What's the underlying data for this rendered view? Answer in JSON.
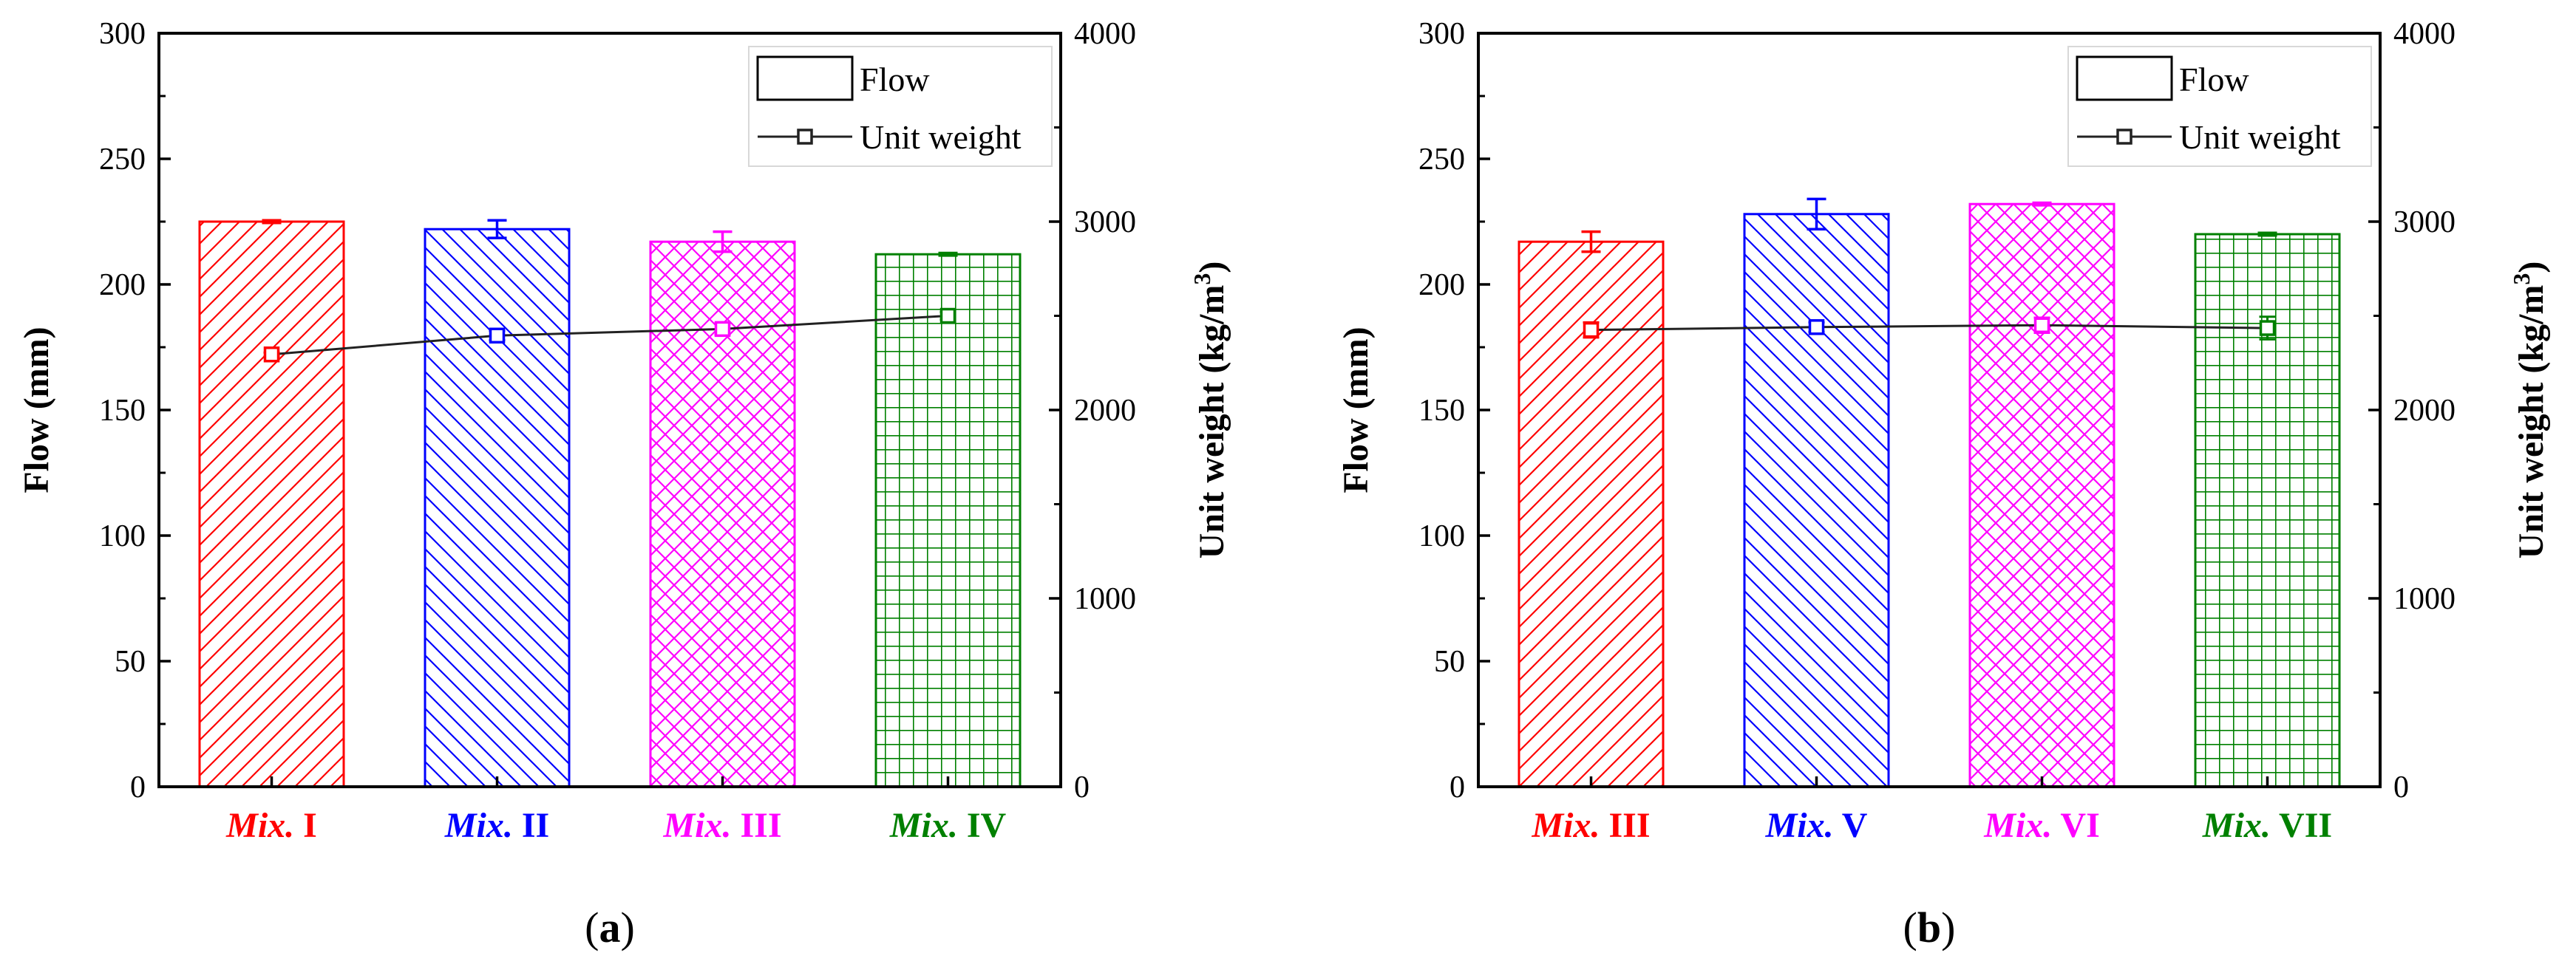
{
  "chart_data": [
    {
      "type": "bar",
      "panel_label": "(a)",
      "panel_label_parts": [
        "(",
        "a",
        ")"
      ],
      "categories": [
        {
          "prefix": "Mix.",
          "numeral": "I",
          "color": "#ff0000"
        },
        {
          "prefix": "Mix.",
          "numeral": "II",
          "color": "#0000ff"
        },
        {
          "prefix": "Mix.",
          "numeral": "III",
          "color": "#ff00ff"
        },
        {
          "prefix": "Mix.",
          "numeral": "IV",
          "color": "#008000"
        }
      ],
      "ylabel_left": "Flow (mm)",
      "ylabel_right": {
        "text": "Unit weight (kg/m",
        "sup": "3",
        "close": ")"
      },
      "ylim_left": [
        0,
        300
      ],
      "yticks_left": [
        0,
        50,
        100,
        150,
        200,
        250,
        300
      ],
      "ylim_right": [
        0,
        4000
      ],
      "yticks_right": [
        0,
        1000,
        2000,
        3000,
        4000
      ],
      "legend": {
        "placement": "top-right",
        "entries": [
          "Flow",
          "Unit weight"
        ]
      },
      "series": [
        {
          "name": "Flow",
          "kind": "bar",
          "axis": "left",
          "values": [
            225,
            222,
            217,
            212
          ],
          "errors": [
            0.5,
            3.5,
            4,
            0.5
          ]
        },
        {
          "name": "Unit weight",
          "kind": "line",
          "axis": "right",
          "values": [
            2295,
            2395,
            2430,
            2500
          ],
          "errors": [
            10,
            25,
            30,
            20
          ]
        }
      ],
      "patterns": [
        "diag-forward",
        "diag-back",
        "crosshatch",
        "grid"
      ]
    },
    {
      "type": "bar",
      "panel_label": "(b)",
      "panel_label_parts": [
        "(",
        "b",
        ")"
      ],
      "categories": [
        {
          "prefix": "Mix.",
          "numeral": "III",
          "color": "#ff0000"
        },
        {
          "prefix": "Mix.",
          "numeral": "V",
          "color": "#0000ff"
        },
        {
          "prefix": "Mix.",
          "numeral": "VI",
          "color": "#ff00ff"
        },
        {
          "prefix": "Mix.",
          "numeral": "VII",
          "color": "#008000"
        }
      ],
      "ylabel_left": "Flow (mm)",
      "ylabel_right": {
        "text": "Unit weight (kg/m",
        "sup": "3",
        "close": ")"
      },
      "ylim_left": [
        0,
        300
      ],
      "yticks_left": [
        0,
        50,
        100,
        150,
        200,
        250,
        300
      ],
      "ylim_right": [
        0,
        4000
      ],
      "yticks_right": [
        0,
        1000,
        2000,
        3000,
        4000
      ],
      "legend": {
        "placement": "top-right",
        "entries": [
          "Flow",
          "Unit weight"
        ]
      },
      "series": [
        {
          "name": "Flow",
          "kind": "bar",
          "axis": "left",
          "values": [
            217,
            228,
            232,
            220
          ],
          "errors": [
            4,
            6,
            0.5,
            0.5
          ]
        },
        {
          "name": "Unit weight",
          "kind": "line",
          "axis": "right",
          "values": [
            2425,
            2440,
            2450,
            2435
          ],
          "errors": [
            40,
            25,
            40,
            60
          ]
        }
      ],
      "patterns": [
        "diag-forward",
        "diag-back",
        "crosshatch",
        "grid"
      ]
    }
  ]
}
